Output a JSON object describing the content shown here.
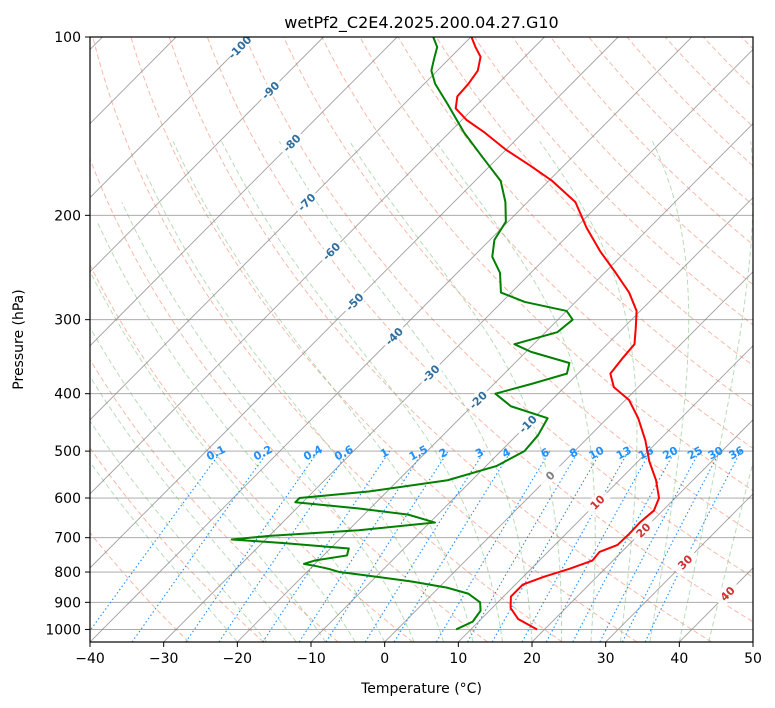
{
  "chart_data": {
    "type": "line",
    "subtype": "skew-t log-p",
    "title": "wetPf2_C2E4.2025.200.04.27.G10",
    "xlabel": "Temperature (°C)",
    "ylabel": "Pressure (hPa)",
    "xlim": [
      -40,
      50
    ],
    "ylim": [
      1050,
      100
    ],
    "y_scale": "log",
    "x_ticks": [
      "−40",
      "−30",
      "−20",
      "−10",
      "0",
      "10",
      "20",
      "30",
      "40",
      "50"
    ],
    "x_tick_values": [
      -40,
      -30,
      -20,
      -10,
      0,
      10,
      20,
      30,
      40,
      50
    ],
    "y_ticks": [
      "100",
      "200",
      "300",
      "400",
      "500",
      "600",
      "700",
      "800",
      "900",
      "1000"
    ],
    "y_tick_values": [
      100,
      200,
      300,
      400,
      500,
      600,
      700,
      800,
      900,
      1000
    ],
    "grid": true,
    "series": [
      {
        "role": "temperature",
        "color": "#ff0000",
        "points": [
          [
            1000,
            19.0
          ],
          [
            960,
            15.0
          ],
          [
            920,
            12.5
          ],
          [
            880,
            11.0
          ],
          [
            840,
            11.0
          ],
          [
            815,
            12.8
          ],
          [
            790,
            15.2
          ],
          [
            765,
            17.2
          ],
          [
            740,
            17.0
          ],
          [
            720,
            18.5
          ],
          [
            690,
            18.6
          ],
          [
            660,
            18.5
          ],
          [
            630,
            18.8
          ],
          [
            600,
            17.8
          ],
          [
            560,
            15.0
          ],
          [
            520,
            11.5
          ],
          [
            480,
            8.2
          ],
          [
            440,
            4.2
          ],
          [
            410,
            0.5
          ],
          [
            390,
            -3.3
          ],
          [
            370,
            -5.6
          ],
          [
            350,
            -6.0
          ],
          [
            330,
            -6.3
          ],
          [
            310,
            -8.3
          ],
          [
            290,
            -10.5
          ],
          [
            270,
            -14.0
          ],
          [
            250,
            -18.5
          ],
          [
            230,
            -23.5
          ],
          [
            210,
            -28.5
          ],
          [
            190,
            -33.5
          ],
          [
            175,
            -39.5
          ],
          [
            165,
            -44.5
          ],
          [
            155,
            -50.0
          ],
          [
            145,
            -55.2
          ],
          [
            138,
            -59.4
          ],
          [
            132,
            -62.4
          ],
          [
            126,
            -63.8
          ],
          [
            120,
            -64.0
          ],
          [
            114,
            -64.5
          ],
          [
            108,
            -66.0
          ],
          [
            104,
            -68.0
          ],
          [
            100,
            -69.9
          ]
        ]
      },
      {
        "role": "dewpoint",
        "color": "#008000",
        "points": [
          [
            1000,
            8.0
          ],
          [
            970,
            9.2
          ],
          [
            930,
            8.8
          ],
          [
            900,
            7.6
          ],
          [
            870,
            4.8
          ],
          [
            850,
            1.1
          ],
          [
            830,
            -4.5
          ],
          [
            810,
            -11.7
          ],
          [
            800,
            -15.6
          ],
          [
            790,
            -17.5
          ],
          [
            782,
            -19.5
          ],
          [
            775,
            -21.5
          ],
          [
            765,
            -20.5
          ],
          [
            750,
            -16.8
          ],
          [
            730,
            -17.5
          ],
          [
            715,
            -27.0
          ],
          [
            705,
            -34.6
          ],
          [
            695,
            -30.0
          ],
          [
            680,
            -18.6
          ],
          [
            660,
            -9.3
          ],
          [
            640,
            -14.0
          ],
          [
            625,
            -21.5
          ],
          [
            610,
            -31.0
          ],
          [
            600,
            -31.0
          ],
          [
            585,
            -22.5
          ],
          [
            560,
            -13.3
          ],
          [
            530,
            -8.6
          ],
          [
            500,
            -6.8
          ],
          [
            470,
            -7.1
          ],
          [
            440,
            -8.1
          ],
          [
            420,
            -14.7
          ],
          [
            400,
            -18.5
          ],
          [
            385,
            -14.9
          ],
          [
            370,
            -11.5
          ],
          [
            355,
            -12.6
          ],
          [
            340,
            -19.3
          ],
          [
            330,
            -22.6
          ],
          [
            315,
            -18.4
          ],
          [
            300,
            -18.0
          ],
          [
            290,
            -20.0
          ],
          [
            280,
            -26.9
          ],
          [
            270,
            -31.4
          ],
          [
            250,
            -34.2
          ],
          [
            235,
            -37.4
          ],
          [
            220,
            -39.4
          ],
          [
            205,
            -40.3
          ],
          [
            190,
            -43.0
          ],
          [
            175,
            -46.5
          ],
          [
            160,
            -52.0
          ],
          [
            145,
            -58.0
          ],
          [
            130,
            -64.0
          ],
          [
            120,
            -68.5
          ],
          [
            114,
            -70.8
          ],
          [
            109,
            -72.0
          ],
          [
            104,
            -73.2
          ],
          [
            100,
            -75.1
          ]
        ]
      }
    ],
    "isotherm_labels": [
      "-100",
      "-90",
      "-80",
      "-70",
      "-60",
      "-50",
      "-40",
      "-30",
      "-20",
      "-10",
      "0",
      "10",
      "20",
      "30",
      "40"
    ],
    "isotherm_label_values": [
      -100,
      -90,
      -80,
      -70,
      -60,
      -50,
      -40,
      -30,
      -20,
      -10,
      0,
      10,
      20,
      30,
      40
    ],
    "mixing_ratio_labels": [
      "0.1",
      "0.2",
      "0.4",
      "0.6",
      "1",
      "1.5",
      "2",
      "3",
      "4",
      "6",
      "8",
      "10",
      "13",
      "16",
      "20",
      "25",
      "30",
      "36"
    ],
    "mixing_ratio_values": [
      0.1,
      0.2,
      0.4,
      0.6,
      1,
      1.5,
      2,
      3,
      4,
      6,
      8,
      10,
      13,
      16,
      20,
      25,
      30,
      36
    ],
    "colors": {
      "temperature": "#ff0000",
      "dewpoint": "#008000",
      "isotherm": "#808080",
      "dry_adiabat": "#f08060",
      "moist_adiabat": "#7fbf7f",
      "mixing_ratio": "#1e90ff",
      "isotherm_label_cold": "#2f6fa0",
      "isotherm_label_zero": "#808080",
      "isotherm_label_warm": "#d03030"
    }
  }
}
